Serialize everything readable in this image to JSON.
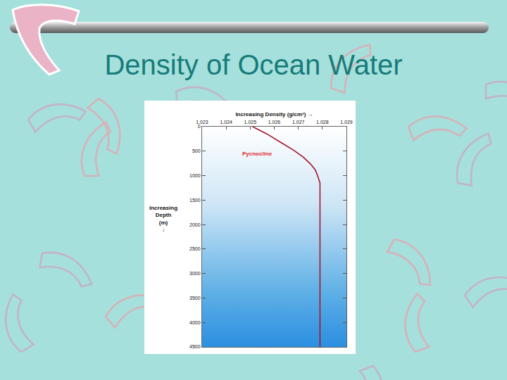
{
  "chart_data": {
    "type": "line",
    "title": "Density of Ocean Water",
    "x_label": "Increasing Density (g/cm³) →",
    "y_label": "Increasing Depth (m) ↓",
    "x": [
      1.0251,
      1.0257,
      1.0263,
      1.0268,
      1.0272,
      1.0275,
      1.0277,
      1.0278,
      1.0279,
      1.0279
    ],
    "values": [
      0,
      150,
      330,
      480,
      620,
      760,
      880,
      1000,
      1150,
      4500
    ],
    "color": "#a3162a",
    "xlim": [
      1.023,
      1.029
    ],
    "xticks": [
      1.023,
      1.024,
      1.025,
      1.026,
      1.027,
      1.028,
      1.029
    ],
    "ylim": [
      4500,
      0
    ],
    "yticks": [
      0,
      500,
      1000,
      1500,
      2000,
      2500,
      3000,
      3500,
      4000,
      4500
    ],
    "grid": false,
    "annotations": [
      {
        "text": "Pycnocline",
        "x": 1.0253,
        "y": 560
      }
    ]
  }
}
